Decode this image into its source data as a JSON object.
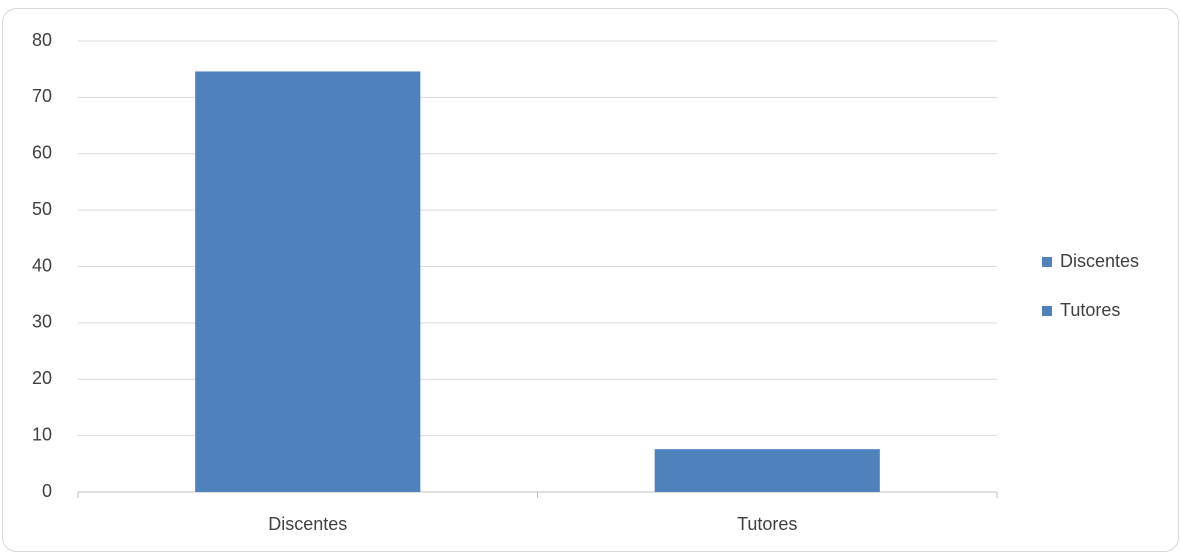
{
  "chart_data": {
    "type": "bar",
    "categories": [
      "Discentes",
      "Tutores"
    ],
    "values": [
      74.6,
      7.6
    ],
    "color": "#4f81bd",
    "ylim": [
      0,
      80
    ],
    "yticks": [
      0,
      10,
      20,
      30,
      40,
      50,
      60,
      70,
      80
    ],
    "grid": true,
    "legend": {
      "position": "right"
    }
  }
}
